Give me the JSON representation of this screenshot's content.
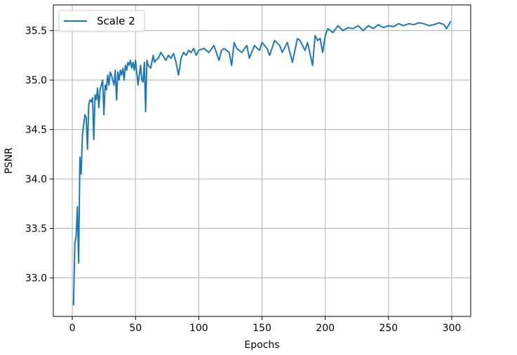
{
  "chart_data": {
    "type": "line",
    "title": "",
    "xlabel": "Epochs",
    "ylabel": "PSNR",
    "xlim": [
      -15,
      315
    ],
    "ylim": [
      32.61,
      35.76
    ],
    "xticks": [
      0,
      50,
      100,
      150,
      200,
      250,
      300
    ],
    "yticks": [
      33.0,
      33.5,
      34.0,
      34.5,
      35.0,
      35.5
    ],
    "xtick_labels": [
      "0",
      "50",
      "100",
      "150",
      "200",
      "250",
      "300"
    ],
    "ytick_labels": [
      "33.0",
      "33.5",
      "34.0",
      "34.5",
      "35.0",
      "35.5"
    ],
    "grid": true,
    "legend_position": "top-left",
    "colors": {
      "series": "#1f77b4",
      "grid": "#b0b0b0",
      "axes": "#000000"
    },
    "series": [
      {
        "name": "Scale 2",
        "x": [
          1,
          2,
          3,
          4,
          5,
          6,
          7,
          8,
          9,
          10,
          11,
          12,
          13,
          14,
          15,
          16,
          17,
          18,
          19,
          20,
          21,
          22,
          23,
          24,
          25,
          26,
          27,
          28,
          29,
          30,
          31,
          32,
          33,
          34,
          35,
          36,
          37,
          38,
          39,
          40,
          41,
          42,
          43,
          44,
          45,
          46,
          47,
          48,
          49,
          50,
          52,
          54,
          55,
          56,
          57,
          58,
          59,
          60,
          62,
          64,
          65,
          66,
          68,
          70,
          72,
          74,
          76,
          78,
          80,
          82,
          84,
          86,
          88,
          90,
          92,
          94,
          96,
          98,
          100,
          104,
          108,
          112,
          116,
          118,
          120,
          124,
          126,
          128,
          130,
          134,
          138,
          140,
          144,
          148,
          150,
          154,
          156,
          160,
          164,
          166,
          170,
          174,
          178,
          180,
          184,
          186,
          190,
          192,
          194,
          196,
          198,
          200,
          202,
          206,
          210,
          214,
          218,
          222,
          226,
          230,
          234,
          238,
          242,
          246,
          250,
          254,
          258,
          262,
          266,
          270,
          274,
          278,
          282,
          286,
          290,
          294,
          296,
          299
        ],
        "values": [
          32.73,
          33.35,
          33.42,
          33.72,
          33.15,
          34.22,
          34.05,
          34.45,
          34.55,
          34.65,
          34.62,
          34.3,
          34.75,
          34.8,
          34.78,
          34.82,
          34.4,
          34.85,
          34.8,
          34.92,
          34.72,
          34.9,
          34.95,
          35.0,
          34.65,
          34.95,
          34.9,
          35.05,
          34.95,
          35.08,
          35.05,
          35.0,
          34.95,
          35.1,
          34.8,
          35.08,
          35.0,
          35.1,
          35.05,
          35.12,
          35.0,
          35.15,
          35.1,
          35.18,
          35.15,
          35.2,
          35.12,
          35.18,
          35.1,
          35.2,
          34.95,
          35.15,
          35.0,
          34.98,
          35.18,
          34.68,
          35.2,
          35.15,
          35.12,
          35.25,
          35.18,
          35.2,
          35.22,
          35.28,
          35.24,
          35.2,
          35.25,
          35.22,
          35.27,
          35.18,
          35.05,
          35.22,
          35.28,
          35.25,
          35.3,
          35.28,
          35.32,
          35.25,
          35.3,
          35.32,
          35.28,
          35.35,
          35.2,
          35.3,
          35.32,
          35.28,
          35.15,
          35.38,
          35.32,
          35.28,
          35.35,
          35.22,
          35.35,
          35.3,
          35.38,
          35.32,
          35.25,
          35.4,
          35.35,
          35.28,
          35.38,
          35.18,
          35.42,
          35.4,
          35.3,
          35.38,
          35.15,
          35.45,
          35.4,
          35.42,
          35.28,
          35.45,
          35.52,
          35.48,
          35.55,
          35.5,
          35.53,
          35.52,
          35.55,
          35.5,
          35.55,
          35.52,
          35.56,
          35.53,
          35.55,
          35.54,
          35.57,
          35.55,
          35.57,
          35.56,
          35.58,
          35.57,
          35.55,
          35.56,
          35.58,
          35.56,
          35.52,
          35.59
        ]
      }
    ]
  }
}
